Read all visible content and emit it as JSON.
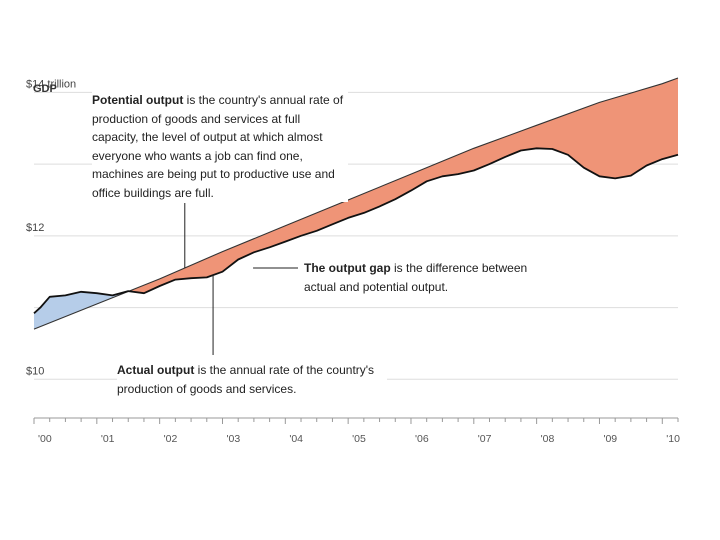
{
  "chart_data": {
    "type": "line",
    "title": "",
    "ylabel": "GDP",
    "y_unit_label": "trillion",
    "ylim": [
      9.6,
      14.2
    ],
    "y_ticks": [
      {
        "value": 14,
        "label": "$14 trillion"
      },
      {
        "value": 13,
        "label": ""
      },
      {
        "value": 12,
        "label": "$12"
      },
      {
        "value": 11,
        "label": ""
      },
      {
        "value": 10,
        "label": "$10"
      }
    ],
    "xlim": [
      2000.0,
      2010.25
    ],
    "x_ticks": [
      {
        "value": 2000,
        "label": "'00"
      },
      {
        "value": 2001,
        "label": "'01"
      },
      {
        "value": 2002,
        "label": "'02"
      },
      {
        "value": 2003,
        "label": "'03"
      },
      {
        "value": 2004,
        "label": "'04"
      },
      {
        "value": 2005,
        "label": "'05"
      },
      {
        "value": 2006,
        "label": "'06"
      },
      {
        "value": 2007,
        "label": "'07"
      },
      {
        "value": 2008,
        "label": "'08"
      },
      {
        "value": 2009,
        "label": "'09"
      },
      {
        "value": 2010,
        "label": "'10"
      }
    ],
    "series": [
      {
        "name": "Potential output",
        "color": "#333333",
        "x": [
          2000.0,
          2001.0,
          2002.0,
          2003.0,
          2004.0,
          2005.0,
          2006.0,
          2007.0,
          2008.0,
          2009.0,
          2010.0,
          2010.25
        ],
        "values": [
          10.7,
          11.05,
          11.4,
          11.78,
          12.14,
          12.5,
          12.86,
          13.22,
          13.54,
          13.86,
          14.12,
          14.2
        ]
      },
      {
        "name": "Actual output",
        "color": "#111111",
        "x": [
          2000.0,
          2000.1,
          2000.25,
          2000.5,
          2000.75,
          2001.0,
          2001.25,
          2001.5,
          2001.75,
          2002.0,
          2002.25,
          2002.5,
          2002.75,
          2003.0,
          2003.25,
          2003.5,
          2003.75,
          2004.0,
          2004.25,
          2004.5,
          2004.75,
          2005.0,
          2005.25,
          2005.5,
          2005.75,
          2006.0,
          2006.25,
          2006.5,
          2006.75,
          2007.0,
          2007.25,
          2007.5,
          2007.75,
          2008.0,
          2008.25,
          2008.5,
          2008.75,
          2009.0,
          2009.25,
          2009.5,
          2009.75,
          2010.0,
          2010.25
        ],
        "values": [
          10.92,
          11.0,
          11.15,
          11.17,
          11.22,
          11.2,
          11.17,
          11.23,
          11.2,
          11.3,
          11.39,
          11.41,
          11.42,
          11.5,
          11.67,
          11.77,
          11.84,
          11.92,
          12.0,
          12.07,
          12.16,
          12.25,
          12.32,
          12.41,
          12.51,
          12.63,
          12.76,
          12.83,
          12.86,
          12.91,
          13.0,
          13.1,
          13.19,
          13.22,
          13.21,
          13.13,
          12.95,
          12.83,
          12.8,
          12.84,
          12.98,
          13.07,
          13.13
        ]
      }
    ],
    "annotations": [
      {
        "bold": "Potential output",
        "text": " is the country's annual rate of production of goods and services at full capacity, the level of output at which almost everyone who wants a job can find one, machines are being put to productive use and office buildings are full."
      },
      {
        "bold": "The output gap",
        "text": " is the difference between actual and potential output."
      },
      {
        "bold": "Actual output",
        "text": " is the annual rate of the country's production of goods and services."
      }
    ],
    "fill_colors": {
      "above_potential": "#b6cde9",
      "below_potential": "#ef9477"
    },
    "grid": true
  }
}
